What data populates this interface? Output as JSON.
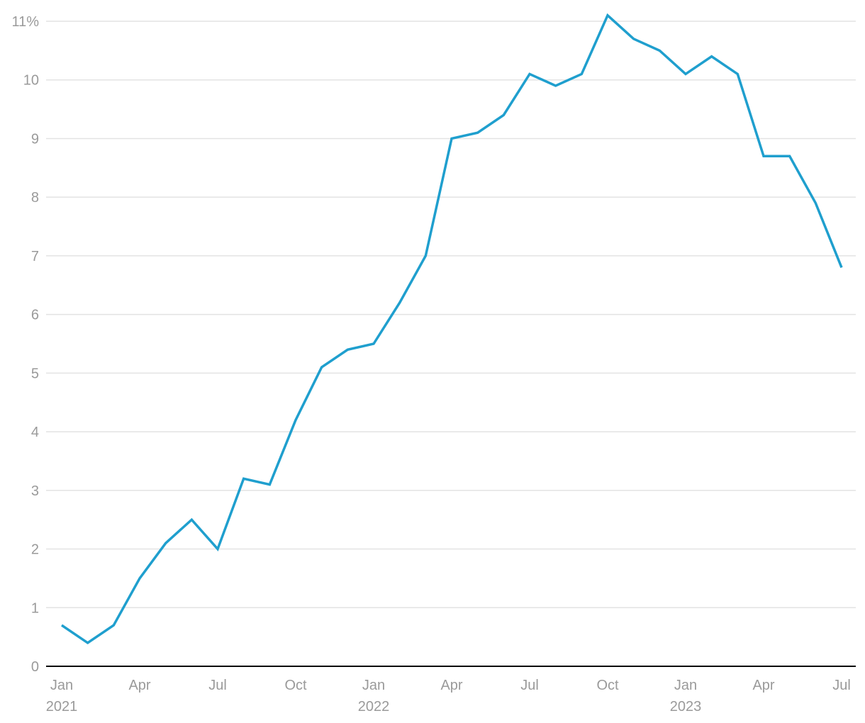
{
  "chart_data": {
    "type": "line",
    "categories": [
      "Jan 2021",
      null,
      null,
      "Apr",
      null,
      null,
      "Jul",
      null,
      null,
      "Oct",
      null,
      null,
      "Jan 2022",
      null,
      null,
      "Apr",
      null,
      null,
      "Jul",
      null,
      null,
      "Oct",
      null,
      null,
      "Jan 2023",
      null,
      null,
      "Apr",
      null,
      null,
      "Jul"
    ],
    "series": [
      {
        "color": "#1f9fce",
        "values": [
          0.7,
          0.4,
          0.7,
          1.5,
          2.1,
          2.5,
          2.0,
          3.2,
          3.1,
          4.2,
          5.1,
          5.4,
          5.5,
          6.2,
          7.0,
          9.0,
          9.1,
          9.4,
          10.1,
          9.9,
          10.1,
          11.1,
          10.7,
          10.5,
          10.1,
          10.4,
          10.1,
          8.7,
          8.7,
          7.9,
          6.8
        ]
      }
    ],
    "ylim": [
      0,
      11
    ],
    "yticks": [
      0,
      1,
      2,
      3,
      4,
      5,
      6,
      7,
      8,
      9,
      10,
      {
        "value": 11,
        "label": "11%"
      }
    ],
    "grid": true
  }
}
